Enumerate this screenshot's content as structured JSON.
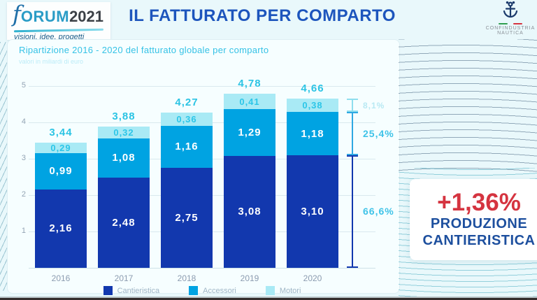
{
  "header": {
    "brand": {
      "f": "f",
      "orum": "ORUM",
      "year": "2021",
      "tagline": "visioni, idee, progetti"
    },
    "title": "IL FATTURATO PER COMPARTO",
    "org": {
      "line1": "CONFINDUSTRIA",
      "line2": "NAUTICA"
    }
  },
  "chart": {
    "subtitle": "Ripartizione 2016 - 2020 del fatturato globale per comparto",
    "note": "valori in miliardi di euro"
  },
  "chart_data": {
    "type": "bar",
    "stacked": true,
    "title": "Ripartizione 2016 - 2020 del fatturato globale per comparto",
    "unit_note": "valori in miliardi di euro",
    "categories": [
      "2016",
      "2017",
      "2018",
      "2019",
      "2020"
    ],
    "series": [
      {
        "name": "Cantieristica",
        "color": "#1238ae",
        "values": [
          2.16,
          2.48,
          2.75,
          3.08,
          3.1
        ],
        "labels": [
          "2,16",
          "2,48",
          "2,75",
          "3,08",
          "3,10"
        ],
        "label_color": "#ffffff",
        "label_size": 15
      },
      {
        "name": "Accessori",
        "color": "#00a3e2",
        "values": [
          0.99,
          1.08,
          1.16,
          1.29,
          1.18
        ],
        "labels": [
          "0,99",
          "1,08",
          "1,16",
          "1,29",
          "1,18"
        ],
        "label_color": "#ffffff",
        "label_size": 15
      },
      {
        "name": "Motori",
        "color": "#a9eaf5",
        "values": [
          0.29,
          0.32,
          0.36,
          0.41,
          0.38
        ],
        "labels": [
          "0,29",
          "0,32",
          "0,36",
          "0,41",
          "0,38"
        ],
        "label_color": "#2cc6e8",
        "label_size": 13
      }
    ],
    "totals": [
      3.44,
      3.88,
      4.27,
      4.78,
      4.66
    ],
    "total_labels": [
      "3,44",
      "3,88",
      "4,27",
      "4,78",
      "4,66"
    ],
    "ylim": [
      0,
      5
    ],
    "yticks": [
      1,
      2,
      3,
      4,
      5
    ],
    "grid": true,
    "legend_position": "bottom",
    "share_annotations": [
      {
        "label": "8,1%",
        "series": "Motori",
        "bracket_color": "#8fdeee",
        "label_color": "#b8e9f3",
        "label_size": 12
      },
      {
        "label": "25,4%",
        "series": "Accessori",
        "bracket_color": "#2fa8e2",
        "label_color": "#3fc3e8",
        "label_size": 14
      },
      {
        "label": "66,6%",
        "series": "Cantieristica",
        "bracket_color": "#1238ae",
        "label_color": "#3fc3e8",
        "label_size": 14
      }
    ]
  },
  "callout": {
    "value": "+1,36%",
    "line1": "PRODUZIONE",
    "line2": "CANTIERISTICA"
  },
  "colors": {
    "cantieristica": "#1238ae",
    "accessori": "#00a3e2",
    "motori": "#a9eaf5",
    "title_blue": "#1d55bd",
    "subtitle_cyan": "#35c2e6",
    "callout_red": "#d53440",
    "callout_navy": "#1d4f9e"
  }
}
